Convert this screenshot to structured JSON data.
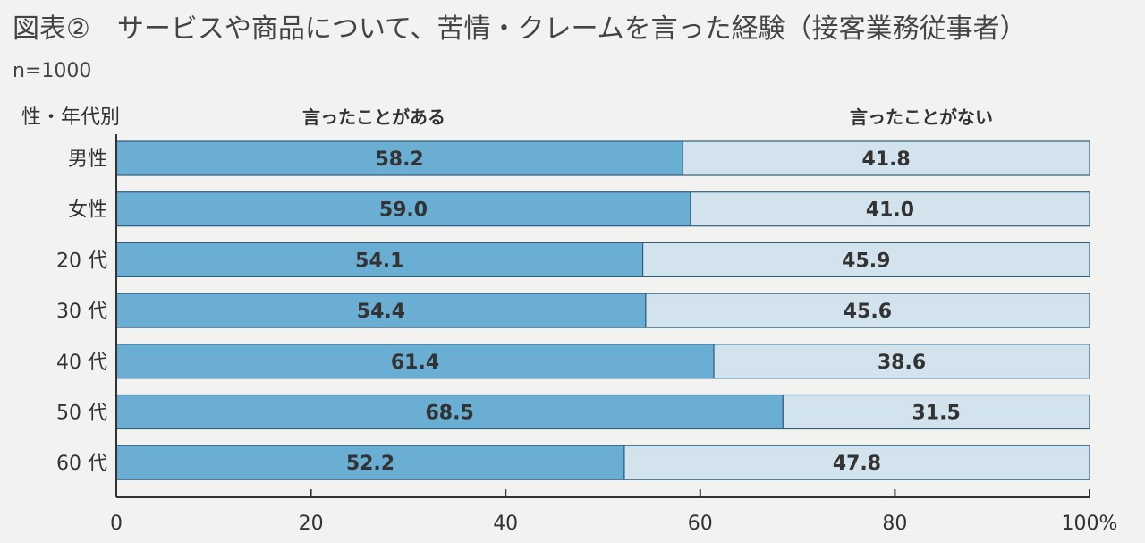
{
  "title": "図表②　サービスや商品について、苦情・クレームを言った経験（接客業務従事者）",
  "note": "n=1000",
  "category_header": "性・年代別",
  "colors": {
    "series1": "#6aaed3",
    "series2": "#d3e3ee",
    "stroke": "#2f5f7f",
    "axis": "#333333"
  },
  "chart_data": {
    "type": "bar",
    "orientation": "horizontal",
    "stacked": true,
    "title": "図表②　サービスや商品について、苦情・クレームを言った経験（接客業務従事者）",
    "categories": [
      "男性",
      "女性",
      "20 代",
      "30 代",
      "40 代",
      "50 代",
      "60 代"
    ],
    "series": [
      {
        "name": "言ったことがある",
        "values": [
          58.2,
          59.0,
          54.1,
          54.4,
          61.4,
          68.5,
          52.2
        ]
      },
      {
        "name": "言ったことがない",
        "values": [
          41.8,
          41.0,
          45.9,
          45.6,
          38.6,
          31.5,
          47.8
        ]
      }
    ],
    "value_labels": [
      [
        "58.2",
        "59.0",
        "54.1",
        "54.4",
        "61.4",
        "68.5",
        "52.2"
      ],
      [
        "41.8",
        "41.0",
        "45.9",
        "45.6",
        "38.6",
        "31.5",
        "47.8"
      ]
    ],
    "xlim": [
      0,
      100
    ],
    "xticks": [
      0,
      20,
      40,
      60,
      80,
      100
    ],
    "xtick_labels": [
      "0",
      "20",
      "40",
      "60",
      "80",
      "100%"
    ],
    "xlabel": "",
    "ylabel": "性・年代別",
    "grid": false
  }
}
